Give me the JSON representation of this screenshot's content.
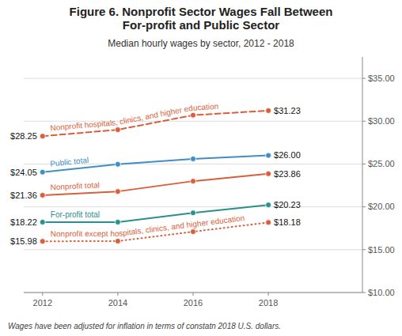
{
  "chart_data": {
    "type": "line",
    "title": "Figure 6. Nonprofit Sector Wages Fall Between\nFor-profit and Public Sector",
    "subtitle": "Median hourly wages by sector, 2012 - 2018",
    "footnote": "Wages have been adjusted for inflation in terms of constatn 2018 U.S. dollars.",
    "x": [
      2012,
      2014,
      2016,
      2018
    ],
    "series": [
      {
        "name": "Nonprofit hospitals, clinics, and higher education",
        "color": "#d95f3b",
        "line_style": "dashed",
        "values": [
          28.25,
          29.0,
          30.7,
          31.23
        ],
        "value_labels": [
          "$28.25",
          null,
          null,
          "$31.23"
        ]
      },
      {
        "name": "Public total",
        "color": "#3f8fc4",
        "line_style": "solid",
        "values": [
          24.05,
          24.97,
          25.6,
          26.0
        ],
        "value_labels": [
          "$24.05",
          null,
          null,
          "$26.00"
        ]
      },
      {
        "name": "Nonprofit total",
        "color": "#d95f3b",
        "line_style": "solid",
        "values": [
          21.36,
          21.8,
          23.0,
          23.86
        ],
        "value_labels": [
          "$21.36",
          null,
          null,
          "$23.86"
        ]
      },
      {
        "name": "For-profit total",
        "color": "#2a8f8f",
        "line_style": "solid",
        "values": [
          18.22,
          18.22,
          19.3,
          20.23
        ],
        "value_labels": [
          "$18.22",
          null,
          null,
          "$20.23"
        ]
      },
      {
        "name": "Nonprofit except hospitals, clinics, and higher education",
        "color": "#d95f3b",
        "line_style": "dotted",
        "values": [
          15.98,
          16.0,
          17.1,
          18.18
        ],
        "value_labels": [
          "$15.98",
          null,
          null,
          "$18.18"
        ]
      }
    ],
    "marker": "circle",
    "xlim": [
      2011.5,
      2020.5
    ],
    "xticks": [
      2012,
      2014,
      2016,
      2018
    ],
    "ylim": [
      10.0,
      37.5
    ],
    "yticks": [
      {
        "value": 10.0,
        "label": "$10.00"
      },
      {
        "value": 15.0,
        "label": "$15.00"
      },
      {
        "value": 20.0,
        "label": "$20.00"
      },
      {
        "value": 25.0,
        "label": "$25.00"
      },
      {
        "value": 30.0,
        "label": "$30.00"
      },
      {
        "value": 35.0,
        "label": "$35.00"
      }
    ],
    "grid": true,
    "data_labels": true
  }
}
